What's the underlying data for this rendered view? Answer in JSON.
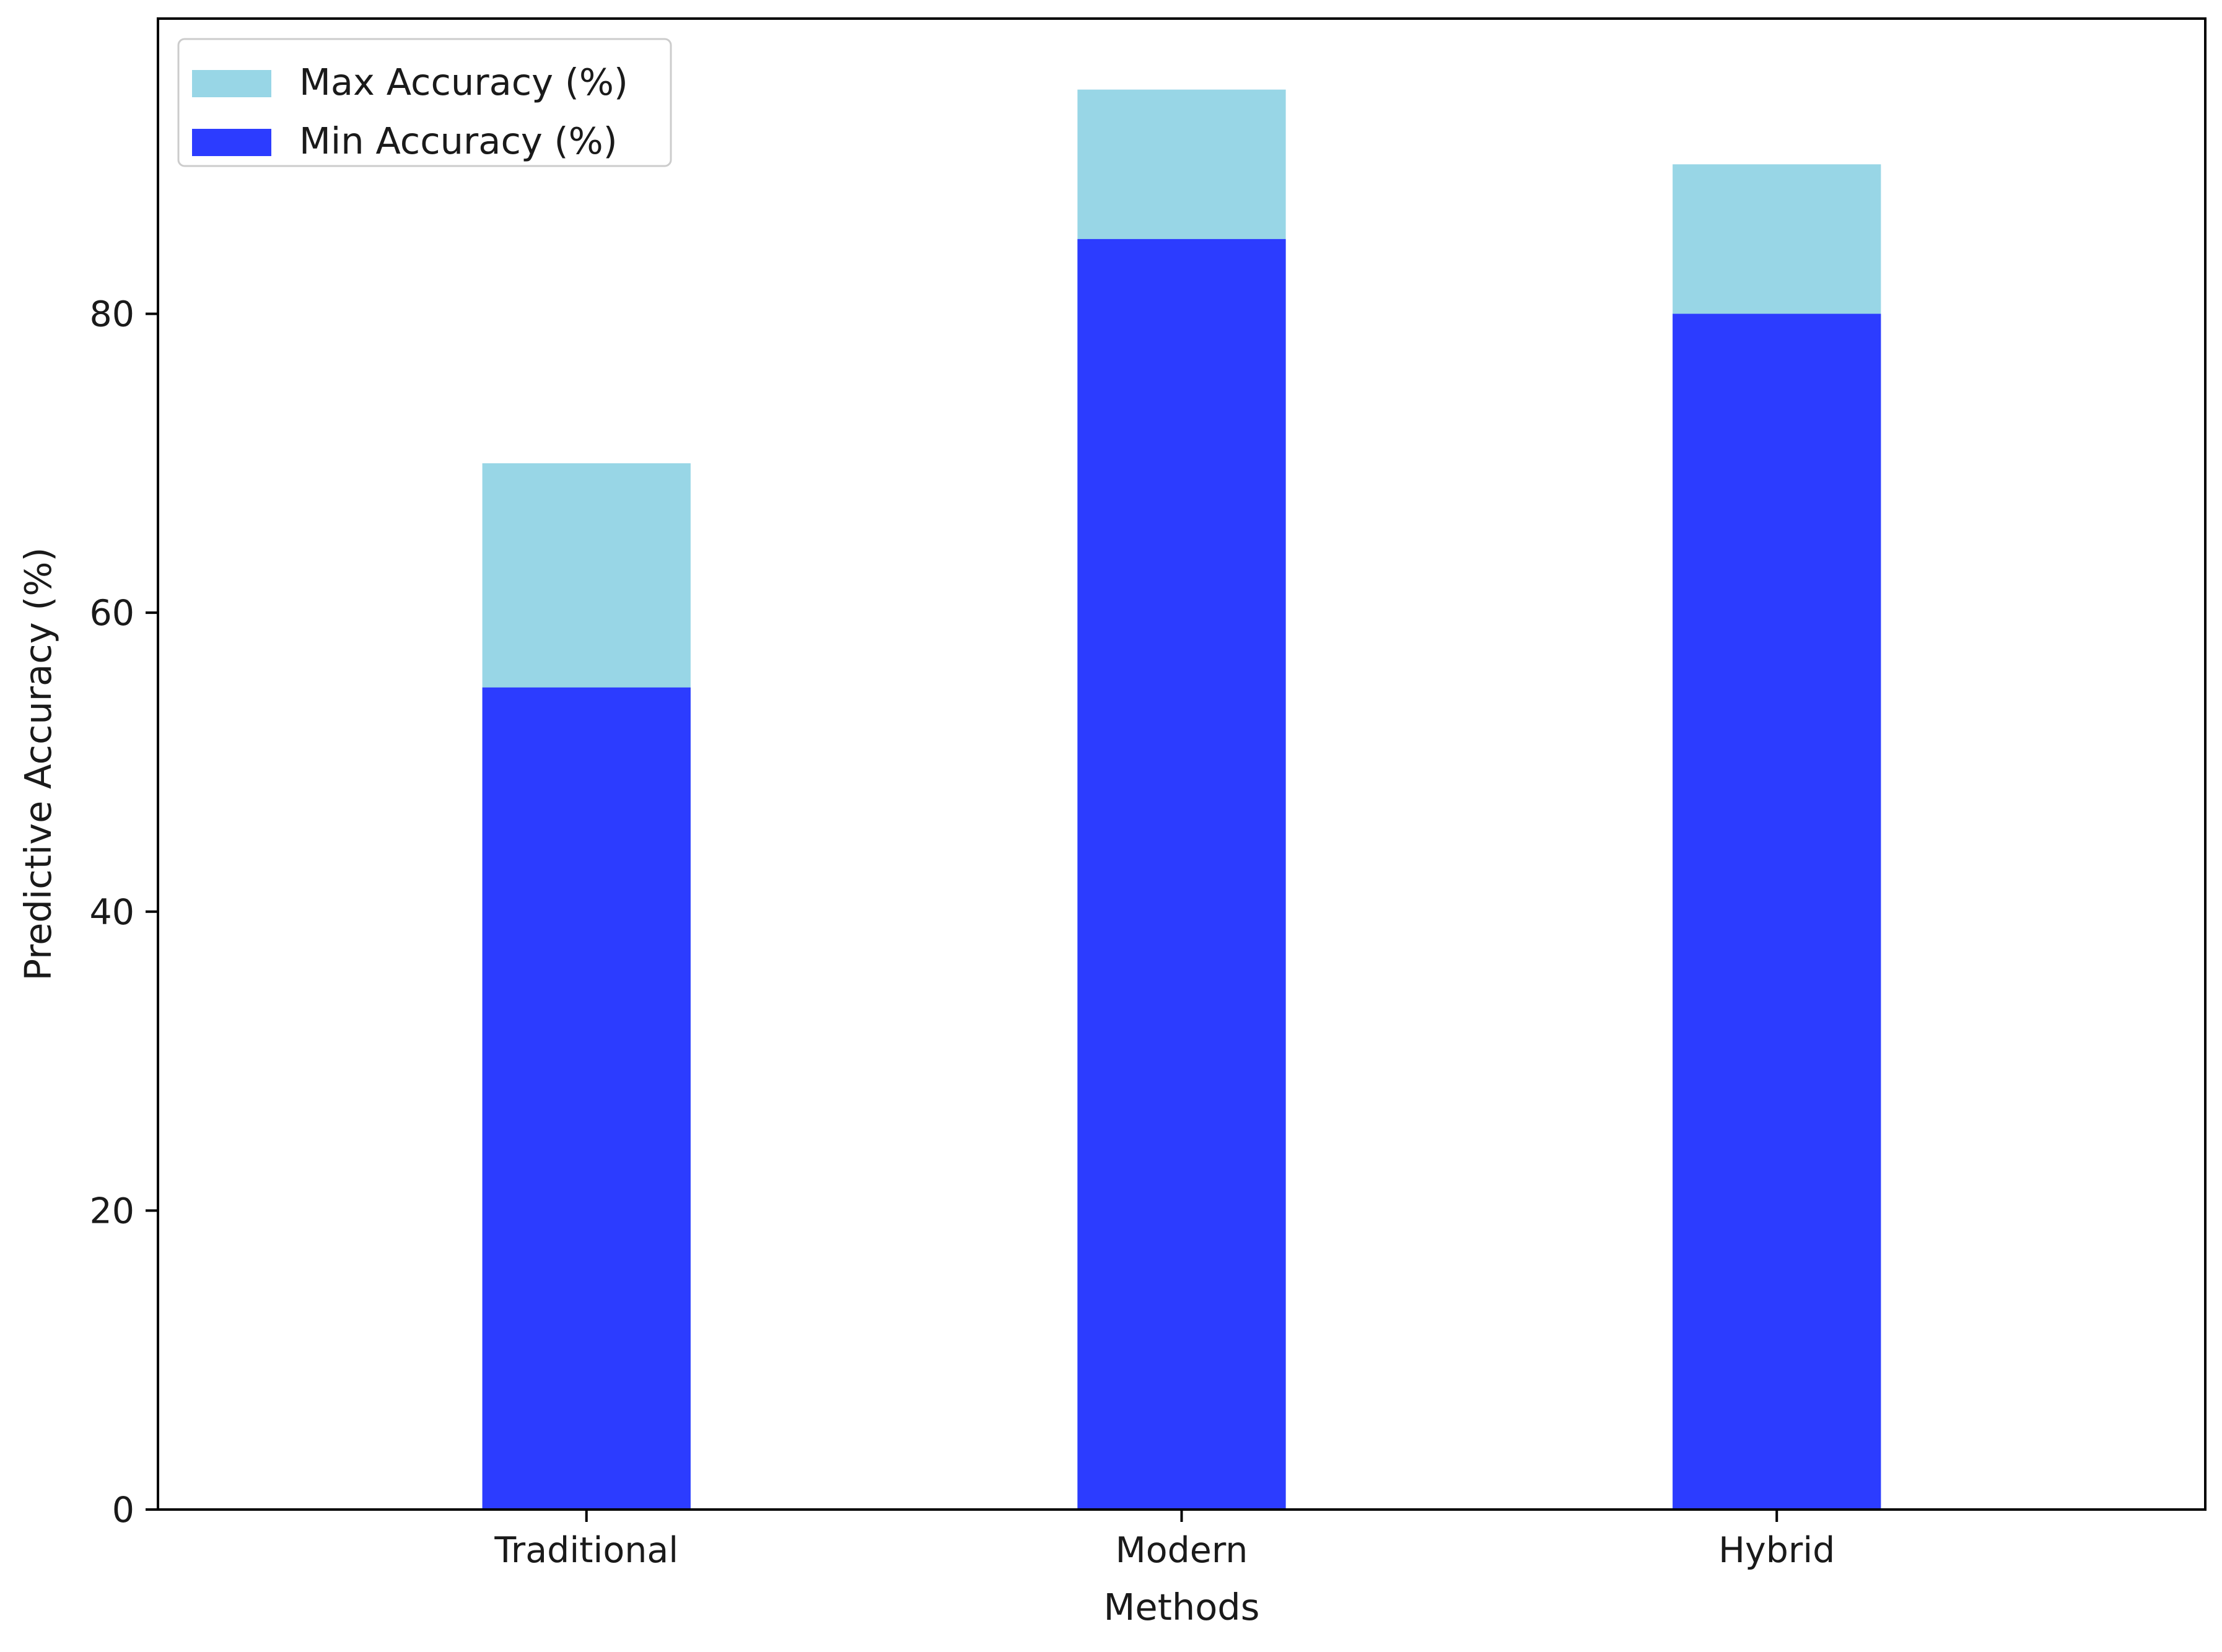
{
  "chart_data": {
    "type": "bar",
    "stacked": false,
    "overlaid": true,
    "title": "",
    "xlabel": "Methods",
    "ylabel": "Predictive Accuracy (%)",
    "categories": [
      "Traditional",
      "Modern",
      "Hybrid"
    ],
    "series": [
      {
        "name": "Max Accuracy (%)",
        "values": [
          70,
          95,
          90
        ],
        "color": "#98d6e6"
      },
      {
        "name": "Min Accuracy (%)",
        "values": [
          55,
          85,
          80
        ],
        "color": "#2c3cff"
      }
    ],
    "ylim": [
      0,
      99.75
    ],
    "yticks": [
      0,
      20,
      40,
      60,
      80
    ],
    "grid": false,
    "legend_position": "top-left"
  }
}
